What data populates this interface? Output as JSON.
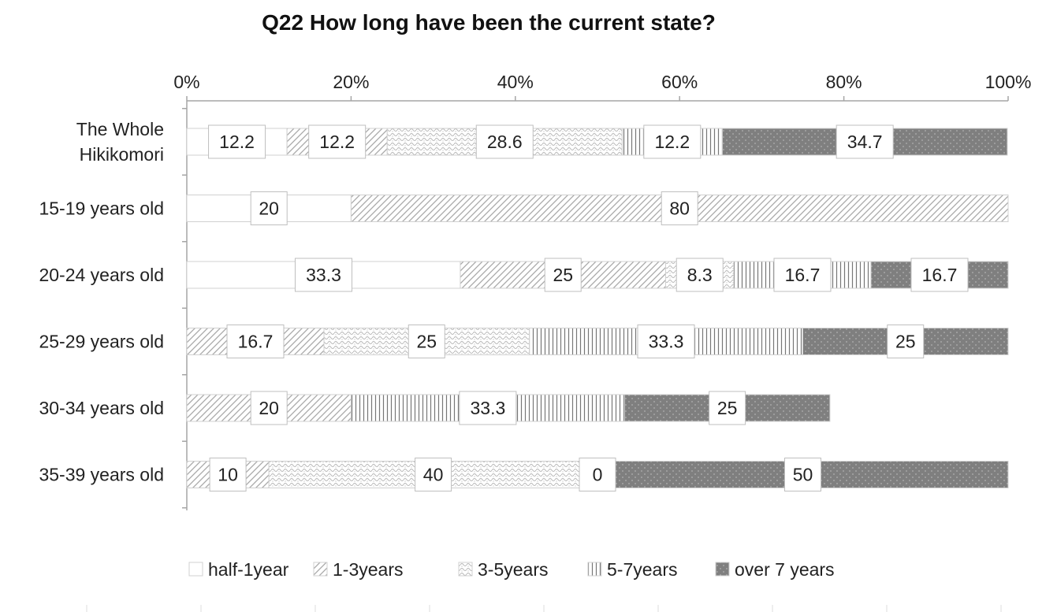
{
  "chart_data": {
    "type": "bar",
    "orientation": "horizontal",
    "stacked": "percent",
    "title": "Q22 How long have been the current state?",
    "xlabel": "",
    "ylabel": "",
    "xlim": [
      0,
      100
    ],
    "x_ticks": [
      "0%",
      "20%",
      "40%",
      "60%",
      "80%",
      "100%"
    ],
    "grid": false,
    "legend_position": "bottom",
    "categories": [
      "The Whole Hikikomori",
      "15-19 years old",
      "20-24 years old",
      "25-29 years old",
      "30-34 years old",
      "35-39 years old"
    ],
    "series": [
      {
        "name": "half-1year",
        "values": [
          12.2,
          20,
          33.3,
          0,
          0,
          0
        ],
        "pattern": "blank"
      },
      {
        "name": "1-3years",
        "values": [
          12.2,
          80,
          25,
          16.7,
          20,
          10
        ],
        "pattern": "diagonal"
      },
      {
        "name": "3-5years",
        "values": [
          28.6,
          0,
          8.3,
          25,
          0,
          40
        ],
        "pattern": "wave"
      },
      {
        "name": "5-7years",
        "values": [
          12.2,
          0,
          16.7,
          33.3,
          33.3,
          0
        ],
        "pattern": "vertical"
      },
      {
        "name": "over 7 years",
        "values": [
          34.7,
          0,
          16.7,
          25,
          25,
          50
        ],
        "pattern": "dark-dots"
      }
    ],
    "data_labels": [
      [
        "12.2",
        "12.2",
        "28.6",
        "12.2",
        "34.7"
      ],
      [
        "20",
        "80",
        "",
        "",
        ""
      ],
      [
        "33.3",
        "25",
        "8.3",
        "16.7",
        "16.7"
      ],
      [
        "",
        "16.7",
        "25",
        "33.3",
        "25"
      ],
      [
        "",
        "20",
        "",
        "33.3",
        "25"
      ],
      [
        "",
        "10",
        "40",
        "0",
        "50"
      ]
    ],
    "category_lines": [
      [
        "The Whole",
        "Hikikomori"
      ],
      [
        "15-19 years old"
      ],
      [
        "20-24 years old"
      ],
      [
        "25-29 years old"
      ],
      [
        "30-34 years old"
      ],
      [
        "35-39 years old"
      ]
    ]
  },
  "colors": {
    "axis": "#a6a6a6",
    "bar_outline": "#d0d0d0",
    "dark_fill": "#7f7f7f",
    "label_box_border": "#bfbfbf"
  }
}
